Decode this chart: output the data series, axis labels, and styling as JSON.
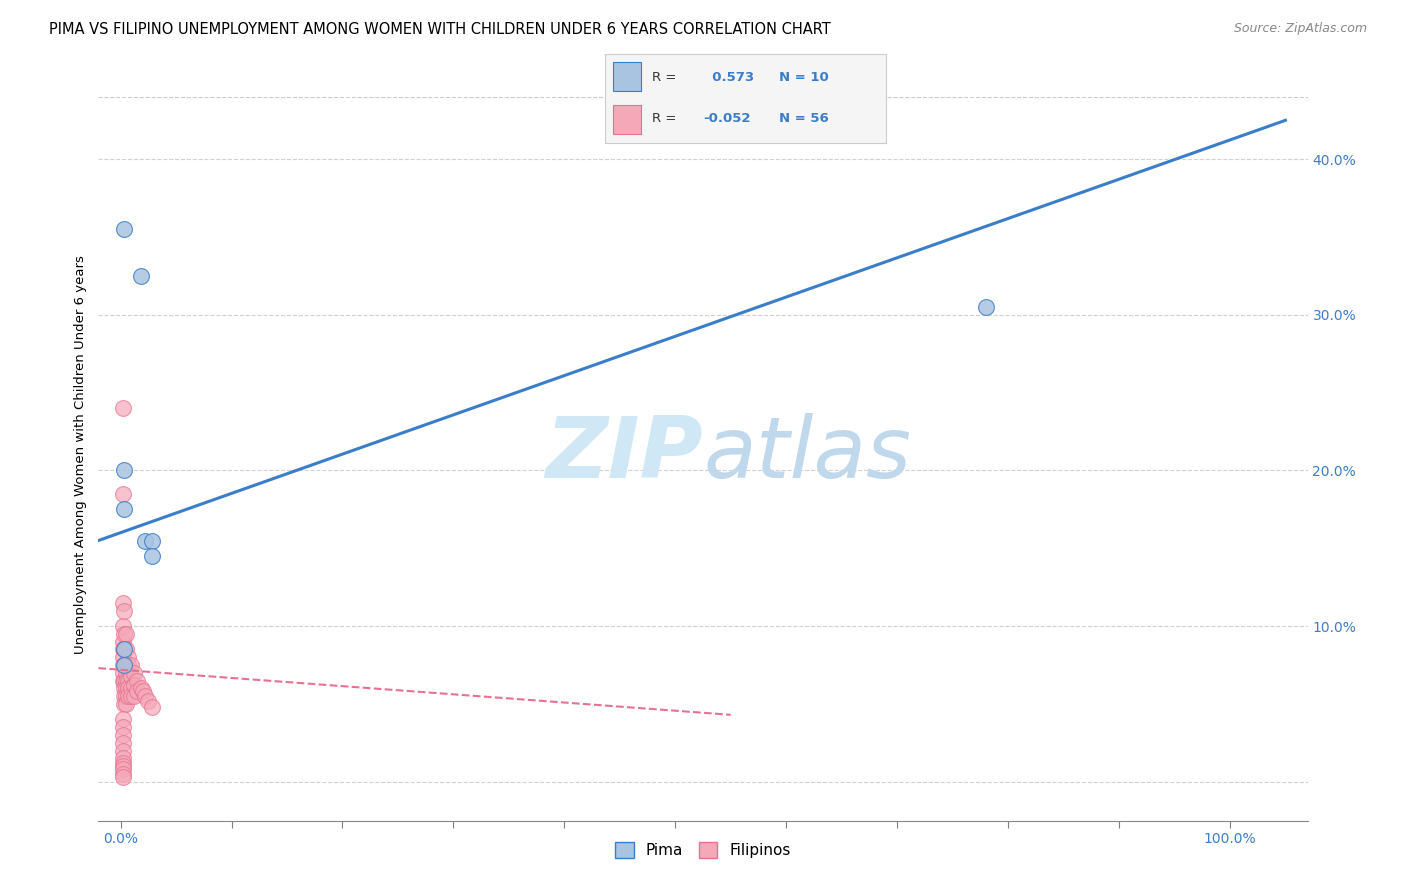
{
  "title": "PIMA VS FILIPINO UNEMPLOYMENT AMONG WOMEN WITH CHILDREN UNDER 6 YEARS CORRELATION CHART",
  "source": "Source: ZipAtlas.com",
  "ylabel": "Unemployment Among Women with Children Under 6 years",
  "legend_pima_label": "Pima",
  "legend_filipino_label": "Filipinos",
  "pima_R": 0.573,
  "pima_N": 10,
  "filipino_R": -0.052,
  "filipino_N": 56,
  "pima_color": "#a8c4e0",
  "pima_line_color": "#3a7dc9",
  "filipino_color": "#f4a8b8",
  "filipino_line_color": "#e87090",
  "pima_x": [
    0.003,
    0.018,
    0.003,
    0.003,
    0.022,
    0.028,
    0.028,
    0.78,
    0.003,
    0.003
  ],
  "pima_y": [
    0.355,
    0.325,
    0.2,
    0.175,
    0.155,
    0.155,
    0.145,
    0.305,
    0.085,
    0.075
  ],
  "filipino_x": [
    0.002,
    0.002,
    0.002,
    0.002,
    0.002,
    0.002,
    0.002,
    0.002,
    0.002,
    0.002,
    0.003,
    0.003,
    0.003,
    0.003,
    0.003,
    0.003,
    0.003,
    0.003,
    0.005,
    0.005,
    0.005,
    0.005,
    0.005,
    0.005,
    0.005,
    0.005,
    0.007,
    0.007,
    0.007,
    0.007,
    0.007,
    0.009,
    0.009,
    0.009,
    0.009,
    0.012,
    0.012,
    0.012,
    0.015,
    0.015,
    0.018,
    0.02,
    0.022,
    0.025,
    0.028,
    0.002,
    0.002,
    0.002,
    0.002,
    0.002,
    0.002,
    0.002,
    0.002,
    0.002,
    0.002,
    0.002
  ],
  "filipino_y": [
    0.24,
    0.185,
    0.115,
    0.1,
    0.09,
    0.085,
    0.08,
    0.075,
    0.07,
    0.065,
    0.11,
    0.095,
    0.085,
    0.075,
    0.065,
    0.06,
    0.055,
    0.05,
    0.095,
    0.085,
    0.075,
    0.07,
    0.065,
    0.06,
    0.055,
    0.05,
    0.08,
    0.075,
    0.065,
    0.06,
    0.055,
    0.075,
    0.068,
    0.06,
    0.055,
    0.07,
    0.062,
    0.055,
    0.065,
    0.058,
    0.06,
    0.058,
    0.055,
    0.052,
    0.048,
    0.04,
    0.035,
    0.03,
    0.025,
    0.02,
    0.015,
    0.012,
    0.01,
    0.008,
    0.005,
    0.003
  ],
  "pima_line_x0": -0.02,
  "pima_line_x1": 1.05,
  "pima_line_y0": 0.155,
  "pima_line_y1": 0.425,
  "fil_line_x0": -0.02,
  "fil_line_x1": 0.55,
  "fil_line_y0": 0.073,
  "fil_line_y1": 0.043,
  "xlim": [
    -0.02,
    1.07
  ],
  "ylim": [
    -0.025,
    0.445
  ],
  "background_color": "#ffffff",
  "grid_color": "#cccccc",
  "title_fontsize": 10.5,
  "axis_label_fontsize": 9.5,
  "tick_fontsize": 10,
  "tick_color": "#3a7dc9",
  "watermark_zip": "ZIP",
  "watermark_atlas": "atlas",
  "watermark_color": "#d0e8f5",
  "watermark_fontsize": 62
}
